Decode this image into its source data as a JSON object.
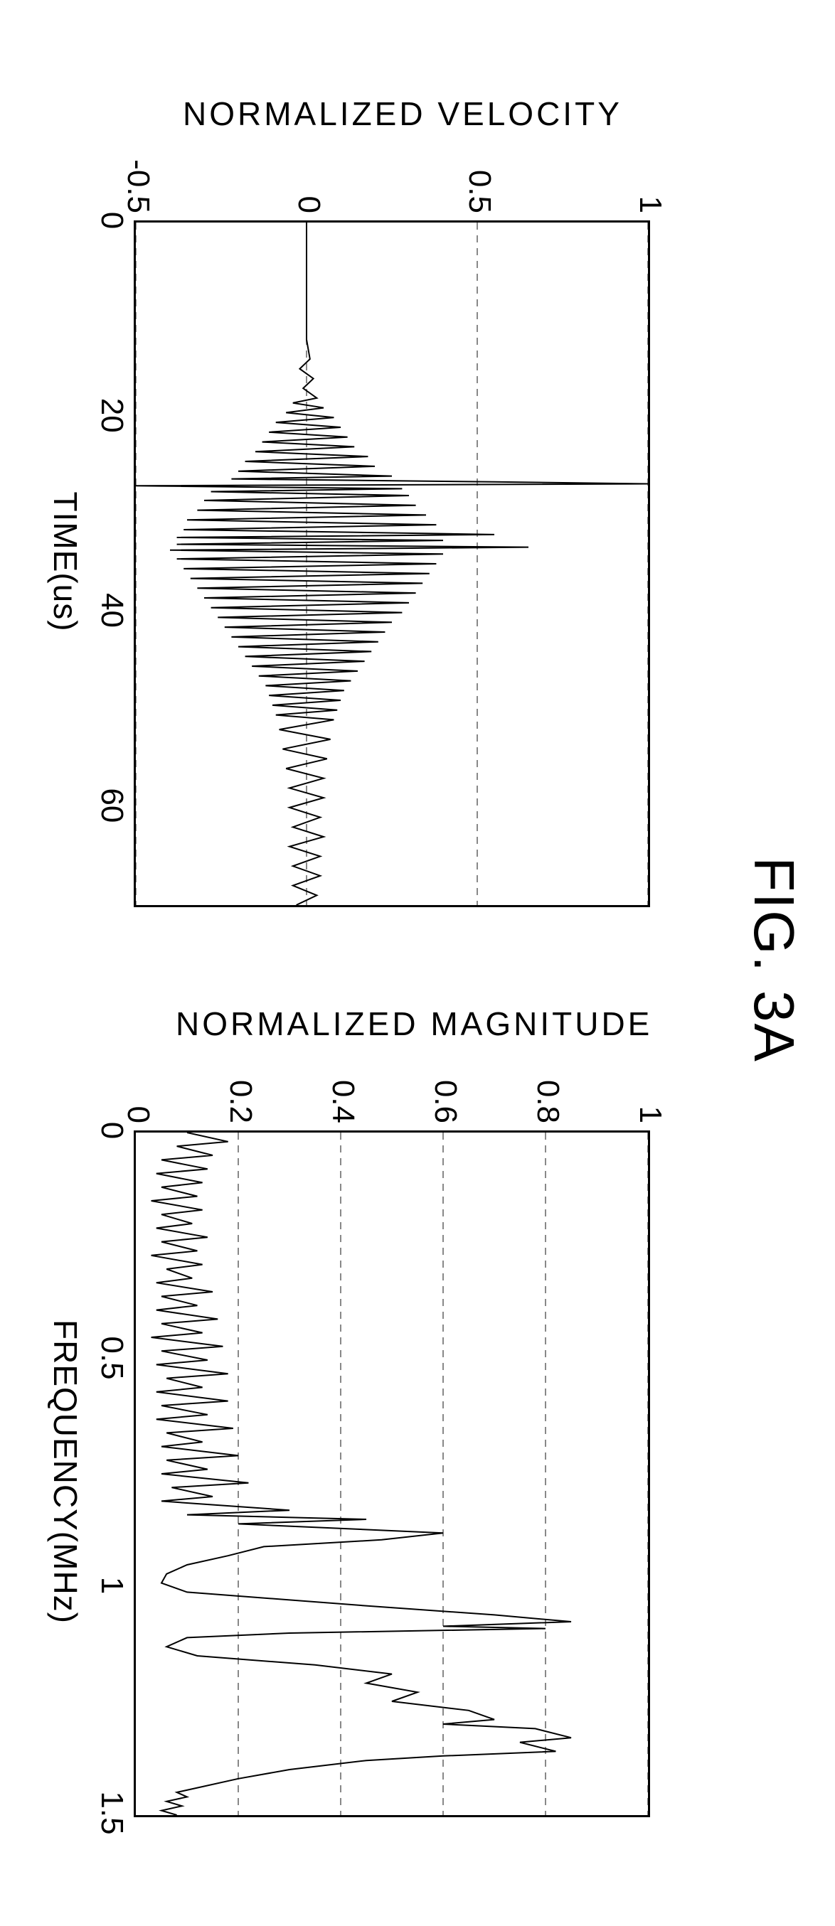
{
  "figure_label": "FIG. 3A",
  "chart_left": {
    "type": "line",
    "xlabel": "TIME(us)",
    "ylabel": "NORMALIZED VELOCITY",
    "xlim": [
      0,
      70
    ],
    "ylim": [
      -0.5,
      1
    ],
    "xticks": [
      0,
      20,
      40,
      60
    ],
    "yticks": [
      -0.5,
      0,
      0.5,
      1
    ],
    "grid_y": [
      -0.5,
      0,
      0.5,
      1
    ],
    "line_color": "#000000",
    "line_width": 2,
    "grid_color": "#888888",
    "background_color": "#ffffff",
    "border_color": "#000000",
    "label_fontsize": 46,
    "tick_fontsize": 44,
    "series": [
      {
        "x": 0,
        "y": 0
      },
      {
        "x": 2,
        "y": 0
      },
      {
        "x": 4,
        "y": 0
      },
      {
        "x": 6,
        "y": 0
      },
      {
        "x": 8,
        "y": 0
      },
      {
        "x": 10,
        "y": 0
      },
      {
        "x": 12,
        "y": 0
      },
      {
        "x": 14,
        "y": 0.01
      },
      {
        "x": 15,
        "y": -0.02
      },
      {
        "x": 16,
        "y": 0.02
      },
      {
        "x": 17,
        "y": -0.01
      },
      {
        "x": 18,
        "y": 0.03
      },
      {
        "x": 18.5,
        "y": -0.04
      },
      {
        "x": 19,
        "y": 0.05
      },
      {
        "x": 19.5,
        "y": -0.06
      },
      {
        "x": 20,
        "y": 0.08
      },
      {
        "x": 20.5,
        "y": -0.09
      },
      {
        "x": 21,
        "y": 0.1
      },
      {
        "x": 21.5,
        "y": -0.11
      },
      {
        "x": 22,
        "y": 0.12
      },
      {
        "x": 22.5,
        "y": -0.13
      },
      {
        "x": 23,
        "y": 0.14
      },
      {
        "x": 23.5,
        "y": -0.15
      },
      {
        "x": 24,
        "y": 0.18
      },
      {
        "x": 24.5,
        "y": -0.18
      },
      {
        "x": 25,
        "y": 0.2
      },
      {
        "x": 25.5,
        "y": -0.2
      },
      {
        "x": 26,
        "y": 0.25
      },
      {
        "x": 26.3,
        "y": -0.22
      },
      {
        "x": 26.6,
        "y": 0.55
      },
      {
        "x": 26.8,
        "y": 1.0
      },
      {
        "x": 27,
        "y": -0.5
      },
      {
        "x": 27.3,
        "y": 0.28
      },
      {
        "x": 27.6,
        "y": -0.28
      },
      {
        "x": 28,
        "y": 0.3
      },
      {
        "x": 28.5,
        "y": -0.3
      },
      {
        "x": 29,
        "y": 0.32
      },
      {
        "x": 29.5,
        "y": -0.32
      },
      {
        "x": 30,
        "y": 0.35
      },
      {
        "x": 30.5,
        "y": -0.35
      },
      {
        "x": 31,
        "y": 0.38
      },
      {
        "x": 31.5,
        "y": -0.36
      },
      {
        "x": 32,
        "y": 0.55
      },
      {
        "x": 32.3,
        "y": -0.38
      },
      {
        "x": 32.6,
        "y": 0.4
      },
      {
        "x": 33,
        "y": -0.38
      },
      {
        "x": 33.3,
        "y": 0.65
      },
      {
        "x": 33.6,
        "y": -0.4
      },
      {
        "x": 34,
        "y": 0.4
      },
      {
        "x": 34.5,
        "y": -0.38
      },
      {
        "x": 35,
        "y": 0.38
      },
      {
        "x": 35.5,
        "y": -0.36
      },
      {
        "x": 36,
        "y": 0.36
      },
      {
        "x": 36.5,
        "y": -0.34
      },
      {
        "x": 37,
        "y": 0.34
      },
      {
        "x": 37.5,
        "y": -0.32
      },
      {
        "x": 38,
        "y": 0.32
      },
      {
        "x": 38.5,
        "y": -0.3
      },
      {
        "x": 39,
        "y": 0.3
      },
      {
        "x": 39.5,
        "y": -0.28
      },
      {
        "x": 40,
        "y": 0.28
      },
      {
        "x": 40.5,
        "y": -0.26
      },
      {
        "x": 41,
        "y": 0.25
      },
      {
        "x": 41.5,
        "y": -0.24
      },
      {
        "x": 42,
        "y": 0.23
      },
      {
        "x": 42.5,
        "y": -0.22
      },
      {
        "x": 43,
        "y": 0.21
      },
      {
        "x": 43.5,
        "y": -0.2
      },
      {
        "x": 44,
        "y": 0.19
      },
      {
        "x": 44.5,
        "y": -0.18
      },
      {
        "x": 45,
        "y": 0.17
      },
      {
        "x": 45.5,
        "y": -0.16
      },
      {
        "x": 46,
        "y": 0.15
      },
      {
        "x": 46.5,
        "y": -0.14
      },
      {
        "x": 47,
        "y": 0.13
      },
      {
        "x": 47.5,
        "y": -0.12
      },
      {
        "x": 48,
        "y": 0.11
      },
      {
        "x": 48.5,
        "y": -0.11
      },
      {
        "x": 49,
        "y": 0.1
      },
      {
        "x": 49.5,
        "y": -0.1
      },
      {
        "x": 50,
        "y": 0.09
      },
      {
        "x": 50.5,
        "y": -0.09
      },
      {
        "x": 51,
        "y": 0.08
      },
      {
        "x": 52,
        "y": -0.08
      },
      {
        "x": 53,
        "y": 0.07
      },
      {
        "x": 54,
        "y": -0.07
      },
      {
        "x": 55,
        "y": 0.06
      },
      {
        "x": 56,
        "y": -0.06
      },
      {
        "x": 57,
        "y": 0.05
      },
      {
        "x": 58,
        "y": -0.05
      },
      {
        "x": 59,
        "y": 0.05
      },
      {
        "x": 60,
        "y": -0.05
      },
      {
        "x": 61,
        "y": 0.04
      },
      {
        "x": 62,
        "y": -0.04
      },
      {
        "x": 63,
        "y": 0.05
      },
      {
        "x": 64,
        "y": -0.05
      },
      {
        "x": 65,
        "y": 0.04
      },
      {
        "x": 66,
        "y": -0.04
      },
      {
        "x": 67,
        "y": 0.04
      },
      {
        "x": 68,
        "y": -0.04
      },
      {
        "x": 69,
        "y": 0.03
      },
      {
        "x": 70,
        "y": -0.03
      }
    ]
  },
  "chart_right": {
    "type": "line",
    "xlabel": "FREQUENCY(MHz)",
    "ylabel": "NORMALIZED MAGNITUDE",
    "xlim": [
      0,
      1.5
    ],
    "ylim": [
      0,
      1
    ],
    "xticks": [
      0,
      0.5,
      1,
      1.5
    ],
    "yticks": [
      0,
      0.2,
      0.4,
      0.6,
      0.8,
      1
    ],
    "grid_y": [
      0.2,
      0.4,
      0.6,
      0.8,
      1
    ],
    "line_color": "#000000",
    "line_width": 2,
    "grid_color": "#888888",
    "background_color": "#ffffff",
    "border_color": "#000000",
    "label_fontsize": 46,
    "tick_fontsize": 44,
    "series": [
      {
        "x": 0,
        "y": 0.1
      },
      {
        "x": 0.02,
        "y": 0.18
      },
      {
        "x": 0.03,
        "y": 0.08
      },
      {
        "x": 0.05,
        "y": 0.15
      },
      {
        "x": 0.06,
        "y": 0.05
      },
      {
        "x": 0.08,
        "y": 0.14
      },
      {
        "x": 0.09,
        "y": 0.04
      },
      {
        "x": 0.11,
        "y": 0.13
      },
      {
        "x": 0.12,
        "y": 0.05
      },
      {
        "x": 0.14,
        "y": 0.12
      },
      {
        "x": 0.15,
        "y": 0.03
      },
      {
        "x": 0.17,
        "y": 0.13
      },
      {
        "x": 0.18,
        "y": 0.05
      },
      {
        "x": 0.2,
        "y": 0.11
      },
      {
        "x": 0.21,
        "y": 0.04
      },
      {
        "x": 0.23,
        "y": 0.14
      },
      {
        "x": 0.24,
        "y": 0.05
      },
      {
        "x": 0.26,
        "y": 0.12
      },
      {
        "x": 0.27,
        "y": 0.03
      },
      {
        "x": 0.29,
        "y": 0.13
      },
      {
        "x": 0.3,
        "y": 0.06
      },
      {
        "x": 0.32,
        "y": 0.11
      },
      {
        "x": 0.33,
        "y": 0.04
      },
      {
        "x": 0.35,
        "y": 0.15
      },
      {
        "x": 0.36,
        "y": 0.05
      },
      {
        "x": 0.38,
        "y": 0.12
      },
      {
        "x": 0.39,
        "y": 0.04
      },
      {
        "x": 0.41,
        "y": 0.16
      },
      {
        "x": 0.42,
        "y": 0.05
      },
      {
        "x": 0.44,
        "y": 0.13
      },
      {
        "x": 0.45,
        "y": 0.03
      },
      {
        "x": 0.47,
        "y": 0.17
      },
      {
        "x": 0.48,
        "y": 0.05
      },
      {
        "x": 0.5,
        "y": 0.14
      },
      {
        "x": 0.51,
        "y": 0.04
      },
      {
        "x": 0.53,
        "y": 0.18
      },
      {
        "x": 0.54,
        "y": 0.06
      },
      {
        "x": 0.56,
        "y": 0.13
      },
      {
        "x": 0.57,
        "y": 0.04
      },
      {
        "x": 0.59,
        "y": 0.18
      },
      {
        "x": 0.6,
        "y": 0.05
      },
      {
        "x": 0.62,
        "y": 0.14
      },
      {
        "x": 0.63,
        "y": 0.04
      },
      {
        "x": 0.65,
        "y": 0.19
      },
      {
        "x": 0.66,
        "y": 0.06
      },
      {
        "x": 0.68,
        "y": 0.13
      },
      {
        "x": 0.69,
        "y": 0.05
      },
      {
        "x": 0.71,
        "y": 0.2
      },
      {
        "x": 0.72,
        "y": 0.06
      },
      {
        "x": 0.74,
        "y": 0.14
      },
      {
        "x": 0.75,
        "y": 0.05
      },
      {
        "x": 0.77,
        "y": 0.22
      },
      {
        "x": 0.78,
        "y": 0.07
      },
      {
        "x": 0.8,
        "y": 0.15
      },
      {
        "x": 0.81,
        "y": 0.05
      },
      {
        "x": 0.83,
        "y": 0.3
      },
      {
        "x": 0.84,
        "y": 0.1
      },
      {
        "x": 0.85,
        "y": 0.45
      },
      {
        "x": 0.86,
        "y": 0.2
      },
      {
        "x": 0.88,
        "y": 0.6
      },
      {
        "x": 0.895,
        "y": 0.48
      },
      {
        "x": 0.91,
        "y": 0.25
      },
      {
        "x": 0.93,
        "y": 0.18
      },
      {
        "x": 0.95,
        "y": 0.1
      },
      {
        "x": 0.97,
        "y": 0.06
      },
      {
        "x": 0.99,
        "y": 0.05
      },
      {
        "x": 1.01,
        "y": 0.1
      },
      {
        "x": 1.04,
        "y": 0.45
      },
      {
        "x": 1.06,
        "y": 0.7
      },
      {
        "x": 1.075,
        "y": 0.85
      },
      {
        "x": 1.085,
        "y": 0.6
      },
      {
        "x": 1.09,
        "y": 0.8
      },
      {
        "x": 1.1,
        "y": 0.3
      },
      {
        "x": 1.11,
        "y": 0.1
      },
      {
        "x": 1.13,
        "y": 0.06
      },
      {
        "x": 1.15,
        "y": 0.12
      },
      {
        "x": 1.17,
        "y": 0.35
      },
      {
        "x": 1.19,
        "y": 0.5
      },
      {
        "x": 1.21,
        "y": 0.45
      },
      {
        "x": 1.23,
        "y": 0.55
      },
      {
        "x": 1.25,
        "y": 0.5
      },
      {
        "x": 1.27,
        "y": 0.65
      },
      {
        "x": 1.29,
        "y": 0.7
      },
      {
        "x": 1.3,
        "y": 0.6
      },
      {
        "x": 1.31,
        "y": 0.78
      },
      {
        "x": 1.33,
        "y": 0.85
      },
      {
        "x": 1.34,
        "y": 0.75
      },
      {
        "x": 1.36,
        "y": 0.82
      },
      {
        "x": 1.37,
        "y": 0.6
      },
      {
        "x": 1.38,
        "y": 0.45
      },
      {
        "x": 1.4,
        "y": 0.3
      },
      {
        "x": 1.42,
        "y": 0.2
      },
      {
        "x": 1.44,
        "y": 0.12
      },
      {
        "x": 1.45,
        "y": 0.08
      },
      {
        "x": 1.46,
        "y": 0.1
      },
      {
        "x": 1.47,
        "y": 0.06
      },
      {
        "x": 1.48,
        "y": 0.09
      },
      {
        "x": 1.49,
        "y": 0.05
      },
      {
        "x": 1.5,
        "y": 0.08
      }
    ]
  }
}
